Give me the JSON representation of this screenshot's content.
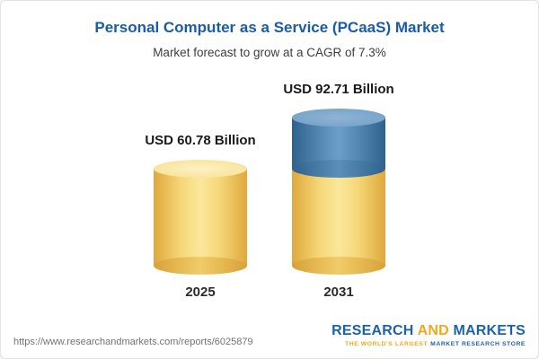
{
  "header": {
    "title": "Personal Computer as a Service (PCaaS) Market",
    "subtitle": "Market forecast to grow at a CAGR of 7.3%"
  },
  "chart_data": {
    "type": "bar",
    "style": "3d-cylinder",
    "categories": [
      "2025",
      "2031"
    ],
    "values": [
      60.78,
      92.71
    ],
    "unit": "USD Billion",
    "value_labels": [
      "USD 60.78 Billion",
      "USD 92.71 Billion"
    ],
    "cagr_percent": 7.3,
    "forecast_segment": true,
    "title": "Personal Computer as a Service (PCaaS) Market",
    "subtitle": "Market forecast to grow at a CAGR of 7.3%",
    "xlabel": "",
    "ylabel": "",
    "legend": "none",
    "grid": false,
    "colors": {
      "base": "#F2D274",
      "forecast": "#5B8FBA"
    }
  },
  "footer": {
    "url": "https://www.researchandmarkets.com/reports/6025879",
    "logo": {
      "word1": "RESEARCH",
      "word2": "AND",
      "word3": "MARKETS",
      "tagline_left": "THE WORLD'S LARGEST",
      "tagline_right": "MARKET RESEARCH STORE"
    }
  }
}
